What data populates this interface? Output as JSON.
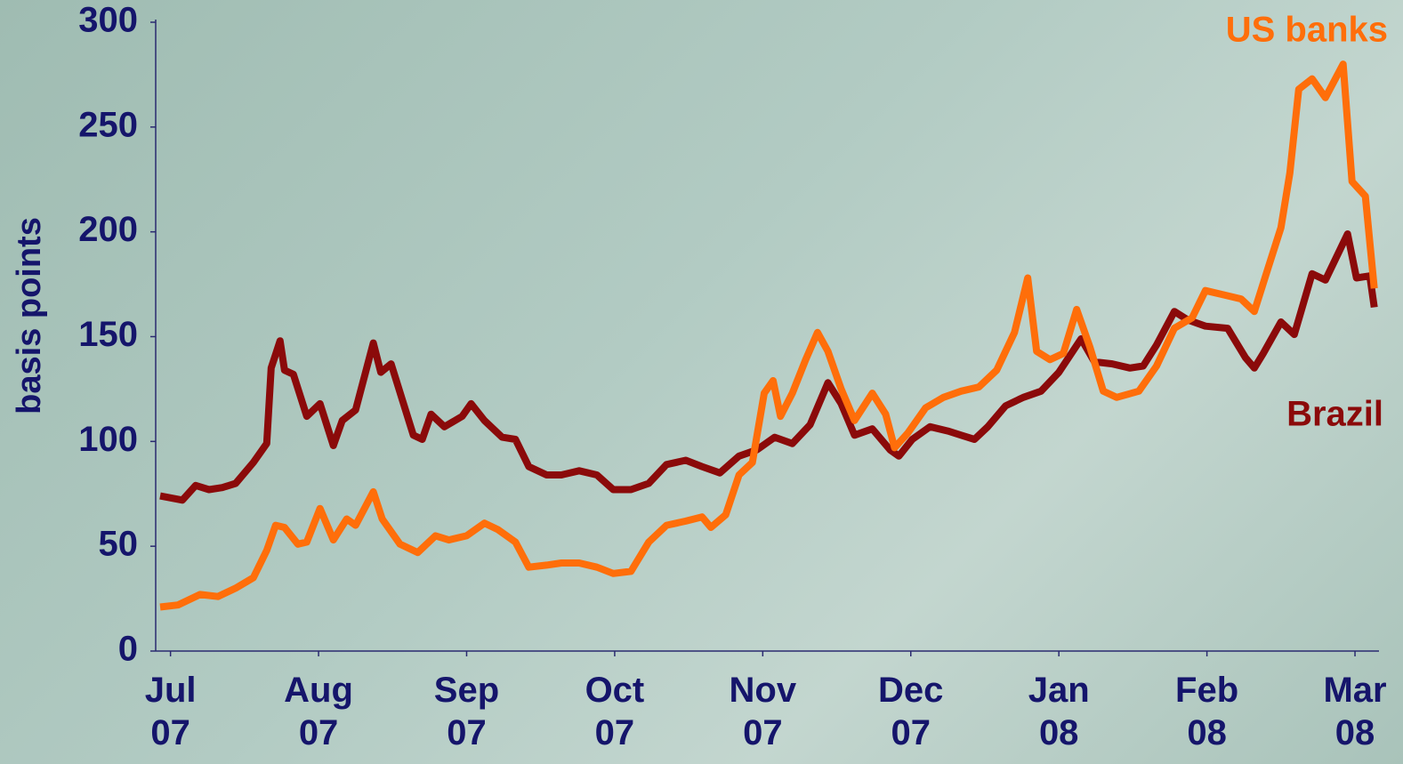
{
  "chart_data": {
    "type": "line",
    "y_label": "basis points",
    "xlim": [
      -0.1,
      8.15
    ],
    "xticks": [
      {
        "value": 0,
        "label": "Jul 07"
      },
      {
        "value": 1,
        "label": "Aug 07"
      },
      {
        "value": 2,
        "label": "Sep 07"
      },
      {
        "value": 3,
        "label": "Oct 07"
      },
      {
        "value": 4,
        "label": "Nov 07"
      },
      {
        "value": 5,
        "label": "Dec 07"
      },
      {
        "value": 6,
        "label": "Jan 08"
      },
      {
        "value": 7,
        "label": "Feb 08"
      },
      {
        "value": 8,
        "label": "Mar 08"
      }
    ],
    "ylim": [
      0,
      300
    ],
    "yticks": [
      0,
      50,
      100,
      150,
      200,
      250,
      300
    ],
    "series": [
      {
        "name": "Brazil",
        "color": "#8b0a0a",
        "x": [
          -0.07,
          0.08,
          0.17,
          0.26,
          0.35,
          0.44,
          0.56,
          0.65,
          0.68,
          0.74,
          0.77,
          0.83,
          0.92,
          1.01,
          1.1,
          1.16,
          1.25,
          1.37,
          1.42,
          1.49,
          1.64,
          1.7,
          1.76,
          1.85,
          1.97,
          2.03,
          2.12,
          2.24,
          2.33,
          2.42,
          2.54,
          2.64,
          2.76,
          2.88,
          2.99,
          3.11,
          3.23,
          3.35,
          3.48,
          3.59,
          3.71,
          3.84,
          3.96,
          4.08,
          4.2,
          4.32,
          4.44,
          4.53,
          4.62,
          4.74,
          4.86,
          4.92,
          5.01,
          5.13,
          5.25,
          5.34,
          5.43,
          5.52,
          5.64,
          5.76,
          5.88,
          6.0,
          6.15,
          6.24,
          6.36,
          6.48,
          6.57,
          6.66,
          6.78,
          6.87,
          6.99,
          7.14,
          7.26,
          7.32,
          7.38,
          7.5,
          7.59,
          7.71,
          7.8,
          7.95,
          8.01,
          8.1,
          8.13
        ],
        "values": [
          74,
          72,
          79,
          77,
          78,
          80,
          90,
          99,
          135,
          148,
          134,
          132,
          112,
          118,
          98,
          110,
          115,
          147,
          133,
          137,
          103,
          101,
          113,
          107,
          112,
          118,
          110,
          102,
          101,
          88,
          84,
          84,
          86,
          84,
          77,
          77,
          80,
          89,
          91,
          88,
          85,
          93,
          96,
          102,
          99,
          108,
          128,
          118,
          103,
          106,
          96,
          93,
          101,
          107,
          105,
          103,
          101,
          107,
          117,
          121,
          124,
          133,
          149,
          138,
          137,
          135,
          136,
          146,
          162,
          158,
          155,
          154,
          140,
          135,
          142,
          157,
          151,
          180,
          177,
          199,
          178,
          179,
          164
        ]
      },
      {
        "name": "US banks",
        "color": "#ff6e0a",
        "x": [
          -0.07,
          0.05,
          0.2,
          0.32,
          0.44,
          0.56,
          0.65,
          0.71,
          0.77,
          0.86,
          0.92,
          1.01,
          1.1,
          1.19,
          1.25,
          1.37,
          1.43,
          1.55,
          1.67,
          1.79,
          1.88,
          2.0,
          2.12,
          2.21,
          2.33,
          2.42,
          2.54,
          2.64,
          2.76,
          2.88,
          2.99,
          3.11,
          3.23,
          3.35,
          3.48,
          3.59,
          3.65,
          3.75,
          3.84,
          3.93,
          4.01,
          4.07,
          4.12,
          4.2,
          4.29,
          4.37,
          4.44,
          4.53,
          4.62,
          4.74,
          4.83,
          4.89,
          4.98,
          5.1,
          5.22,
          5.34,
          5.46,
          5.58,
          5.7,
          5.79,
          5.85,
          5.94,
          6.03,
          6.12,
          6.21,
          6.3,
          6.39,
          6.54,
          6.66,
          6.78,
          6.9,
          6.99,
          7.11,
          7.23,
          7.32,
          7.41,
          7.5,
          7.56,
          7.62,
          7.71,
          7.8,
          7.92,
          7.98,
          8.07,
          8.13
        ],
        "values": [
          21,
          22,
          27,
          26,
          30,
          35,
          48,
          60,
          59,
          51,
          52,
          68,
          53,
          63,
          60,
          76,
          63,
          51,
          47,
          55,
          53,
          55,
          61,
          58,
          52,
          40,
          41,
          42,
          42,
          40,
          37,
          38,
          52,
          60,
          62,
          64,
          59,
          65,
          84,
          90,
          123,
          129,
          112,
          123,
          139,
          152,
          143,
          125,
          110,
          123,
          113,
          97,
          104,
          116,
          121,
          124,
          126,
          134,
          152,
          178,
          143,
          139,
          142,
          163,
          145,
          124,
          121,
          124,
          136,
          154,
          159,
          172,
          170,
          168,
          162,
          182,
          202,
          228,
          268,
          273,
          264,
          280,
          224,
          217,
          173
        ]
      }
    ]
  }
}
